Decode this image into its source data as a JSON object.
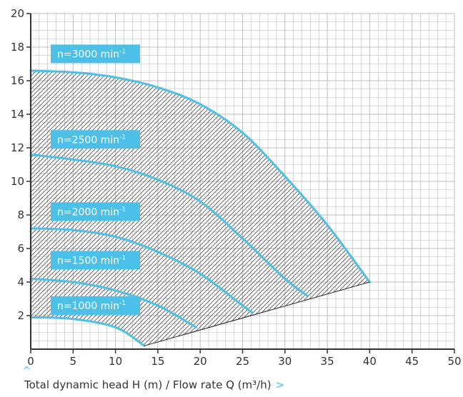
{
  "chart_data": {
    "type": "line",
    "title": "",
    "xlabel": "Total dynamic head H (m) / Flow rate Q (m³/h)",
    "ylabel": "",
    "xlim": [
      0,
      50
    ],
    "ylim": [
      0,
      20
    ],
    "x_ticks": [
      0,
      5,
      10,
      15,
      20,
      25,
      30,
      35,
      40,
      45,
      50
    ],
    "y_ticks": [
      2,
      4,
      6,
      8,
      10,
      12,
      14,
      16,
      18,
      20
    ],
    "grid": true,
    "series": [
      {
        "name": "n=3000 min⁻¹",
        "label": "n=3000 min",
        "sup": "-1",
        "label_y": 17.6,
        "x": [
          0,
          5,
          10,
          15,
          20,
          25,
          30,
          35,
          40
        ],
        "y": [
          16.6,
          16.5,
          16.2,
          15.6,
          14.6,
          12.9,
          10.3,
          7.4,
          4.0
        ]
      },
      {
        "name": "n=2500 min⁻¹",
        "label": "n=2500 min",
        "sup": "-1",
        "label_y": 12.5,
        "x": [
          0,
          5,
          10,
          15,
          20,
          25,
          30,
          32.6
        ],
        "y": [
          11.6,
          11.3,
          10.9,
          10.1,
          8.8,
          6.6,
          4.2,
          3.2
        ]
      },
      {
        "name": "n=2000 min⁻¹",
        "label": "n=2000 min",
        "sup": "-1",
        "label_y": 8.2,
        "x": [
          0,
          5,
          10,
          15,
          20,
          25,
          26.1
        ],
        "y": [
          7.2,
          7.1,
          6.7,
          5.8,
          4.5,
          2.6,
          2.2
        ]
      },
      {
        "name": "n=1500 min⁻¹",
        "label": "n=1500 min",
        "sup": "-1",
        "label_y": 5.3,
        "x": [
          0,
          5,
          10,
          15,
          19.5
        ],
        "y": [
          4.2,
          4.0,
          3.5,
          2.6,
          1.3
        ]
      },
      {
        "name": "n=1000 min⁻¹",
        "label": "n=1000 min",
        "sup": "-1",
        "label_y": 2.6,
        "x": [
          0,
          5,
          10,
          13.4
        ],
        "y": [
          1.9,
          1.8,
          1.3,
          0.2
        ]
      }
    ],
    "operating_limit": {
      "x": [
        13.4,
        40
      ],
      "y": [
        0.2,
        4.0
      ]
    },
    "hatched_region": true
  },
  "caption": {
    "chevron": ">",
    "up_caret": "^"
  },
  "colors": {
    "curve": "#4cc0e8",
    "label_bg": "#4cc0e8",
    "grid": "#bdbdbd",
    "axis": "#333333",
    "hatch": "#555555"
  }
}
